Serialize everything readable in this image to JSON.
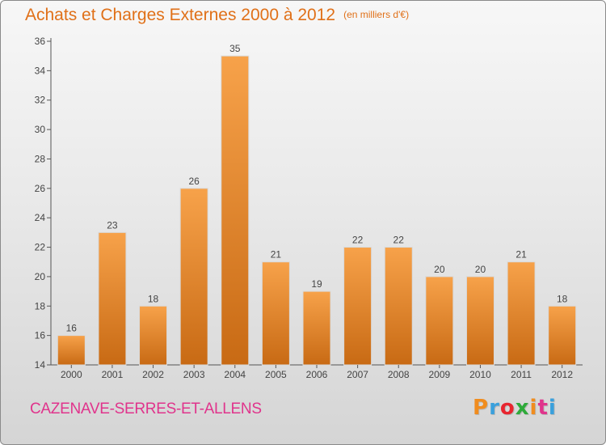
{
  "header": {
    "title": "Achats et Charges Externes 2000 à 2012",
    "subtitle": "(en milliers d'€)"
  },
  "footer": {
    "commune": "CAZENAVE-SERRES-ET-ALLENS",
    "logo_text": "Proxiti",
    "logo_letter_colors": [
      "#f08c1e",
      "#3aa0dc",
      "#e8252f",
      "#2eaa3a",
      "#f08c1e",
      "#e0348c",
      "#3aa0dc"
    ]
  },
  "colors": {
    "accent": "#e07018",
    "bar_light": "#f7a24a",
    "bar_dark": "#c86a14",
    "commune": "#e0348c"
  },
  "chart_data": {
    "type": "bar",
    "title": "Achats et Charges Externes 2000 à 2012",
    "subtitle": "(en milliers d'€)",
    "categories": [
      "2000",
      "2001",
      "2002",
      "2003",
      "2004",
      "2005",
      "2006",
      "2007",
      "2008",
      "2009",
      "2010",
      "2011",
      "2012"
    ],
    "values": [
      16,
      23,
      18,
      26,
      35,
      21,
      19,
      22,
      22,
      20,
      20,
      21,
      18
    ],
    "ylim": [
      14,
      36
    ],
    "yticks": [
      14,
      16,
      18,
      20,
      22,
      24,
      26,
      28,
      30,
      32,
      34,
      36
    ],
    "grid": false,
    "legend": "none"
  }
}
